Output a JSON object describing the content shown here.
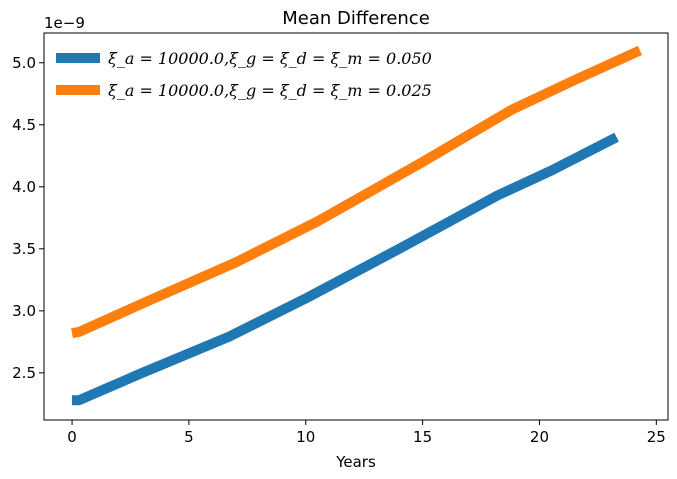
{
  "chart_data": {
    "type": "line",
    "title": "Mean Difference",
    "xlabel": "Years",
    "ylabel": "",
    "y_offset_label": "1e−9",
    "xlim": [
      -1.2,
      25.5
    ],
    "ylim": [
      2.12,
      5.24
    ],
    "xticks": [
      0,
      5,
      10,
      15,
      20,
      25
    ],
    "xtick_labels": [
      "0",
      "5",
      "10",
      "15",
      "20",
      "25"
    ],
    "yticks": [
      2.5,
      3.0,
      3.5,
      4.0,
      4.5,
      5.0
    ],
    "ytick_labels": [
      "2.5",
      "3.0",
      "3.5",
      "4.0",
      "4.5",
      "5.0"
    ],
    "grid": false,
    "legend_position": "upper-left",
    "series": [
      {
        "name": "ξ_a = 10000.0,ξ_g = ξ_d = ξ_m = 0.050",
        "color": "#1f77b4",
        "x": [
          0,
          0.3,
          3,
          6.7,
          10,
          14,
          18.2,
          20.5,
          23.3
        ],
        "y": [
          2.28,
          2.28,
          2.5,
          2.79,
          3.1,
          3.5,
          3.93,
          4.13,
          4.4
        ]
      },
      {
        "name": "ξ_a = 10000.0,ξ_g = ξ_d = ξ_m = 0.025",
        "color": "#ff7f0e",
        "x": [
          0,
          0.3,
          3.5,
          7,
          10.5,
          15,
          18.8,
          21.5,
          24.3
        ],
        "y": [
          2.82,
          2.83,
          3.1,
          3.39,
          3.72,
          4.2,
          4.62,
          4.86,
          5.1
        ]
      }
    ]
  }
}
